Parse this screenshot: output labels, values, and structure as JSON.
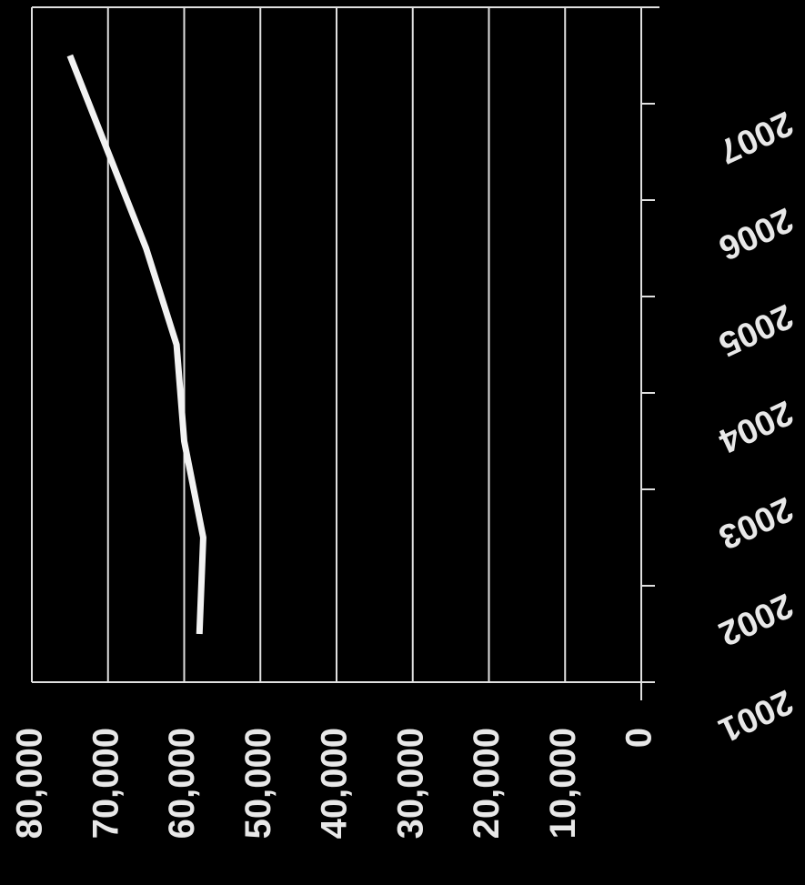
{
  "chart_data": {
    "type": "line",
    "categories": [
      "2001",
      "2002",
      "2003",
      "2004",
      "2005",
      "2006",
      "2007"
    ],
    "series": [
      {
        "color": "#f2f2f2",
        "values": [
          58000,
          57500,
          60000,
          61000,
          65000,
          70000,
          75000
        ]
      }
    ],
    "ylim": [
      0,
      80000
    ],
    "yticks": [
      0,
      {
        "value": 10000,
        "label": "10,000"
      },
      {
        "value": 20000,
        "label": "20,000"
      },
      {
        "value": 30000,
        "label": "30,000"
      },
      {
        "value": 40000,
        "label": "40,000"
      },
      {
        "value": 50000,
        "label": "50,000"
      },
      {
        "value": 60000,
        "label": "60,000"
      },
      {
        "value": 70000,
        "label": "70,000"
      },
      {
        "value": 80000,
        "label": "80,000"
      }
    ],
    "grid": true
  }
}
